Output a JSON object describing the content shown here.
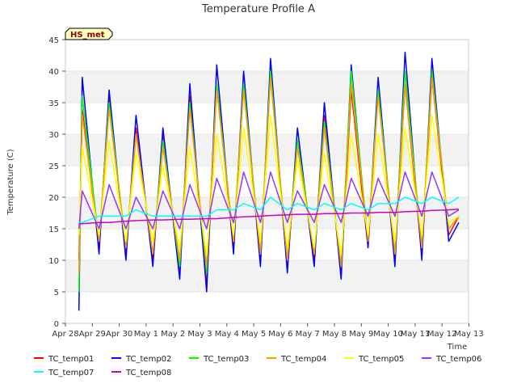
{
  "chart_data": {
    "type": "line",
    "title": "Temperature Profile A",
    "xlabel": "Time",
    "ylabel": "Temperature (C)",
    "badge": "HS_met",
    "ylim": [
      0,
      45
    ],
    "yticks": [
      0,
      5,
      10,
      15,
      20,
      25,
      30,
      35,
      40,
      45
    ],
    "xlim": [
      "Apr 28",
      "May 13"
    ],
    "xticks": [
      "Apr 28",
      "Apr 29",
      "Apr 30",
      "May 1",
      "May 2",
      "May 3",
      "May 4",
      "May 5",
      "May 6",
      "May 7",
      "May 8",
      "May 9",
      "May 10",
      "May 11",
      "May 12",
      "May 13"
    ],
    "grid": "horizontal bands",
    "legend_position": "bottom",
    "x": [
      "Apr 28 12:00",
      "Apr 28 15:00",
      "Apr 29 06:00",
      "Apr 29 15:00",
      "Apr 30 06:00",
      "Apr 30 15:00",
      "May 1 06:00",
      "May 1 15:00",
      "May 2 06:00",
      "May 2 15:00",
      "May 3 06:00",
      "May 3 15:00",
      "May 4 06:00",
      "May 4 15:00",
      "May 5 06:00",
      "May 5 15:00",
      "May 6 06:00",
      "May 6 15:00",
      "May 7 06:00",
      "May 7 15:00",
      "May 8 06:00",
      "May 8 15:00",
      "May 9 06:00",
      "May 9 15:00",
      "May 10 06:00",
      "May 10 15:00",
      "May 11 06:00",
      "May 11 15:00",
      "May 12 06:00",
      "May 12 15:00"
    ],
    "series": [
      {
        "name": "TC_temp01",
        "color": "#ff0000",
        "values": [
          10,
          34,
          12,
          36,
          11,
          31,
          10,
          30,
          8,
          36,
          6,
          38,
          12,
          38,
          10,
          40,
          9,
          29,
          10,
          33,
          8,
          37,
          12,
          37,
          10,
          38,
          11,
          39,
          14,
          17
        ]
      },
      {
        "name": "TC_temp02",
        "color": "#0000ff",
        "values": [
          2,
          39,
          11,
          37,
          10,
          33,
          9,
          31,
          7,
          38,
          5,
          41,
          11,
          40,
          9,
          42,
          8,
          31,
          9,
          35,
          7,
          41,
          12,
          39,
          9,
          43,
          10,
          42,
          13,
          16
        ]
      },
      {
        "name": "TC_temp03",
        "color": "#00ff00",
        "values": [
          5,
          36,
          13,
          35,
          12,
          30,
          11,
          29,
          9,
          35,
          8,
          38,
          13,
          38,
          11,
          40,
          10,
          29,
          11,
          32,
          9,
          40,
          13,
          37,
          11,
          40,
          12,
          40,
          15,
          17
        ]
      },
      {
        "name": "TC_temp04",
        "color": "#ff9900",
        "values": [
          8,
          33,
          13,
          34,
          12,
          30,
          11,
          28,
          10,
          34,
          9,
          37,
          13,
          37,
          11,
          39,
          10,
          28,
          11,
          31,
          9,
          38,
          13,
          36,
          11,
          38,
          12,
          39,
          15,
          17
        ]
      },
      {
        "name": "TC_temp05",
        "color": "#ffff00",
        "values": [
          14,
          28,
          14,
          29,
          13,
          27,
          13,
          25,
          12,
          28,
          11,
          30,
          14,
          31,
          13,
          33,
          12,
          26,
          12,
          27,
          11,
          30,
          14,
          30,
          13,
          31,
          14,
          33,
          16,
          17
        ]
      },
      {
        "name": "TC_temp06",
        "color": "#9933ff",
        "values": [
          15,
          21,
          15,
          22,
          15,
          20,
          15,
          21,
          15,
          22,
          15,
          23,
          16,
          24,
          16,
          24,
          16,
          21,
          16,
          22,
          16,
          23,
          17,
          23,
          17,
          24,
          17,
          24,
          17,
          18
        ]
      },
      {
        "name": "TC_temp07",
        "color": "#00ffff",
        "values": [
          16,
          16,
          17,
          17,
          17,
          18,
          17,
          17,
          17,
          17,
          17,
          18,
          18,
          19,
          18,
          20,
          18,
          19,
          18,
          19,
          18,
          19,
          18,
          19,
          19,
          20,
          19,
          20,
          19,
          20
        ]
      },
      {
        "name": "TC_temp08",
        "color": "#cc00cc",
        "values": [
          15.8,
          15.8,
          16.0,
          16.0,
          16.2,
          16.3,
          16.4,
          16.4,
          16.5,
          16.5,
          16.6,
          16.6,
          16.8,
          16.9,
          17.0,
          17.1,
          17.2,
          17.3,
          17.3,
          17.4,
          17.4,
          17.5,
          17.5,
          17.6,
          17.6,
          17.7,
          17.8,
          17.9,
          18.0,
          18.1
        ]
      }
    ]
  }
}
